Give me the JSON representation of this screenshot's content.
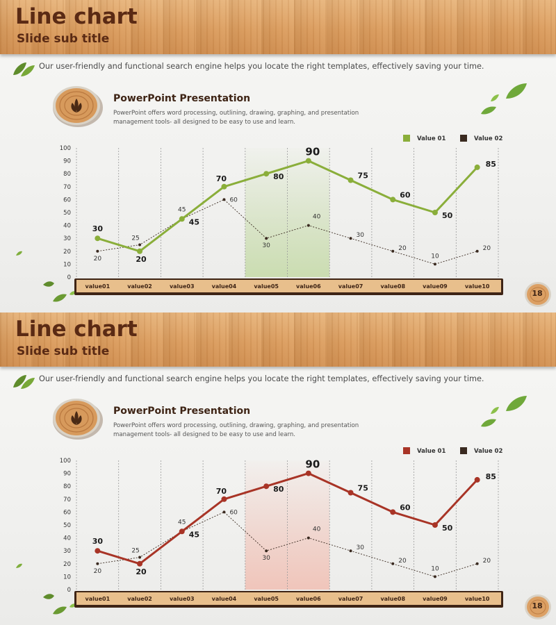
{
  "slides": [
    {
      "title": "Line chart",
      "subtitle": "Slide sub title",
      "intro": "Our user-friendly and functional search engine helps you locate the right templates, effectively saving your time.",
      "section_title": "PowerPoint Presentation",
      "section_body": "PowerPoint offers word processing, outlining, drawing, graphing, and presentation management tools- all designed to be easy to use and learn.",
      "page_number": "18",
      "colors": {
        "series1": "#8aae3a",
        "series2": "#3a2a20",
        "highlight": "#c9dcae"
      }
    },
    {
      "title": "Line chart",
      "subtitle": "Slide sub title",
      "intro": "Our user-friendly and functional search engine helps you locate the right templates, effectively saving your time.",
      "section_title": "PowerPoint Presentation",
      "section_body": "PowerPoint offers word processing, outlining, drawing, graphing, and presentation management tools- all designed to be easy to use and learn.",
      "page_number": "18",
      "colors": {
        "series1": "#a83426",
        "series2": "#3a2a20",
        "highlight": "#f0c3b8"
      }
    }
  ],
  "chart_data": [
    {
      "type": "line",
      "categories": [
        "value01",
        "value02",
        "value03",
        "value04",
        "value05",
        "value06",
        "value07",
        "value08",
        "value09",
        "value10"
      ],
      "series": [
        {
          "name": "Value 01",
          "values": [
            30,
            20,
            45,
            70,
            80,
            90,
            75,
            60,
            50,
            85
          ]
        },
        {
          "name": "Value 02",
          "values": [
            20,
            25,
            45,
            60,
            30,
            40,
            30,
            20,
            10,
            20
          ]
        }
      ],
      "y_ticks": [
        "0",
        "10",
        "20",
        "30",
        "40",
        "50",
        "60",
        "70",
        "80",
        "90",
        "100"
      ],
      "ylim": [
        0,
        100
      ],
      "highlight_categories": [
        "value05",
        "value06"
      ],
      "legend_position": "top-right",
      "grid": "vertical-dashed"
    },
    {
      "type": "line",
      "categories": [
        "value01",
        "value02",
        "value03",
        "value04",
        "value05",
        "value06",
        "value07",
        "value08",
        "value09",
        "value10"
      ],
      "series": [
        {
          "name": "Value 01",
          "values": [
            30,
            20,
            45,
            70,
            80,
            90,
            75,
            60,
            50,
            85
          ]
        },
        {
          "name": "Value 02",
          "values": [
            20,
            25,
            45,
            60,
            30,
            40,
            30,
            20,
            10,
            20
          ]
        }
      ],
      "y_ticks": [
        "0",
        "10",
        "20",
        "30",
        "40",
        "50",
        "60",
        "70",
        "80",
        "90",
        "100"
      ],
      "ylim": [
        0,
        100
      ],
      "highlight_categories": [
        "value05",
        "value06"
      ],
      "legend_position": "top-right",
      "grid": "vertical-dashed"
    }
  ]
}
